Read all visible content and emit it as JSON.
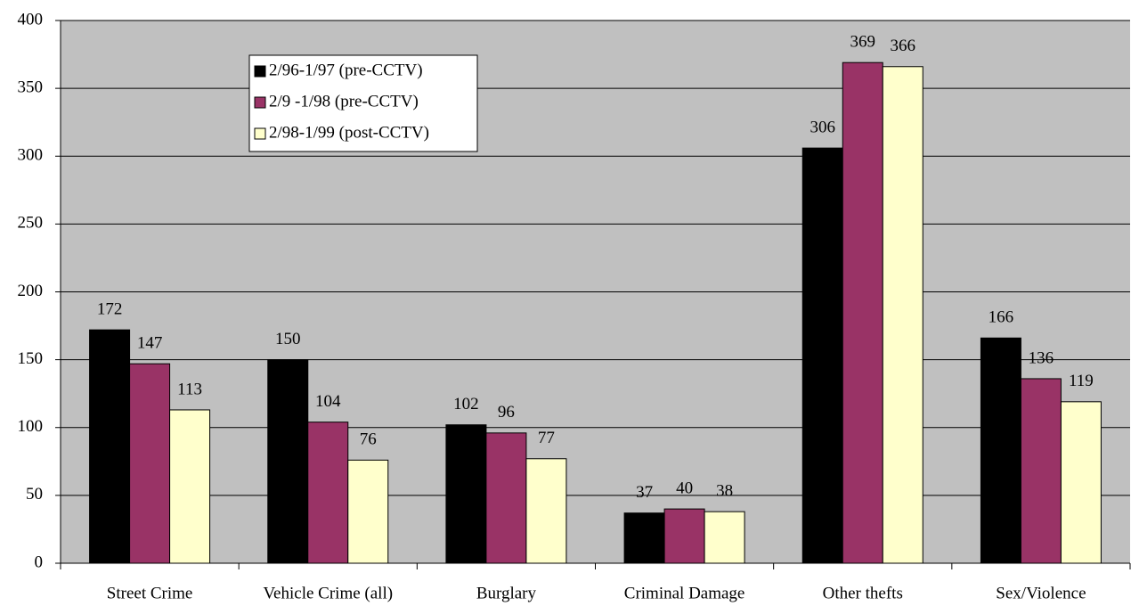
{
  "chart_data": {
    "type": "bar",
    "categories": [
      "Street Crime",
      "Vehicle Crime (all)",
      "Burglary",
      "Criminal Damage",
      "Other thefts",
      "Sex/Violence"
    ],
    "series": [
      {
        "name": "2/96-1/97 (pre-CCTV)",
        "color": "#000000",
        "values": [
          172,
          150,
          102,
          37,
          306,
          166
        ]
      },
      {
        "name": "2/9 -1/98 (pre-CCTV)",
        "color": "#993366",
        "values": [
          147,
          104,
          96,
          40,
          369,
          136
        ]
      },
      {
        "name": "2/98-1/99 (post-CCTV)",
        "color": "#ffffcc",
        "values": [
          113,
          76,
          77,
          38,
          366,
          119
        ]
      }
    ],
    "ylim": [
      0,
      400
    ],
    "yticks": [
      0,
      50,
      100,
      150,
      200,
      250,
      300,
      350,
      400
    ],
    "grid": true,
    "legend": "top-left",
    "plot_background": "#c0c0c0"
  }
}
